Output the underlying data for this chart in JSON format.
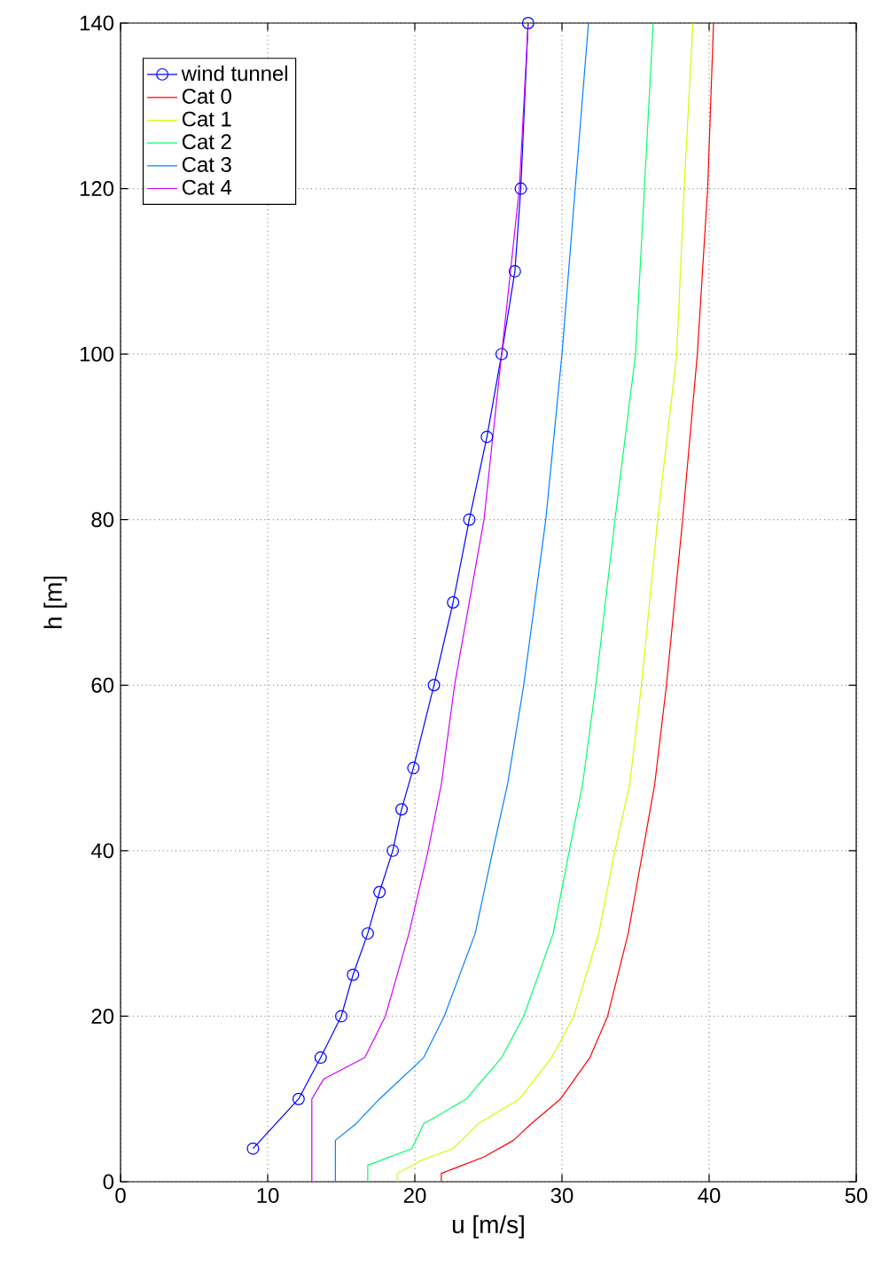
{
  "chart_data": {
    "type": "line",
    "xlabel": "u [m/s]",
    "ylabel": "h [m]",
    "xlim": [
      0,
      50
    ],
    "ylim": [
      0,
      140
    ],
    "xticks": [
      0,
      10,
      20,
      30,
      40,
      50
    ],
    "yticks": [
      0,
      20,
      40,
      60,
      80,
      100,
      120,
      140
    ],
    "grid": true,
    "legend": "top left",
    "line_style": "solid",
    "series": [
      {
        "name": "wind tunnel",
        "color": "#0000ff",
        "marker": "circle",
        "x": [
          9.0,
          12.1,
          13.6,
          15.0,
          15.8,
          16.8,
          17.6,
          18.5,
          19.1,
          19.9,
          21.3,
          22.6,
          23.7,
          24.9,
          25.9,
          26.8,
          27.2,
          27.7
        ],
        "values": [
          4,
          10,
          15,
          20,
          25,
          30,
          35,
          40,
          45,
          50,
          60,
          70,
          80,
          90,
          100,
          110,
          120,
          140
        ]
      },
      {
        "name": "Cat 0",
        "color": "#ff0000",
        "marker": "none",
        "x": [
          21.8,
          21.8,
          24.7,
          26.7,
          27.9,
          29.9,
          31.9,
          33.1,
          34.5,
          35.5,
          36.3,
          37.1,
          38.2,
          39.2,
          39.9,
          40.3
        ],
        "values": [
          0,
          1,
          3,
          5,
          7,
          10,
          15,
          20,
          30,
          40,
          48,
          60,
          80,
          100,
          120,
          140
        ]
      },
      {
        "name": "Cat 1",
        "color": "#ccff00",
        "marker": "none",
        "x": [
          18.8,
          18.8,
          20.6,
          22.6,
          24.3,
          27.1,
          29.3,
          30.8,
          32.5,
          33.6,
          34.6,
          35.4,
          36.5,
          37.8,
          38.3,
          38.9
        ],
        "values": [
          0,
          1,
          2.7,
          4,
          7,
          10,
          15,
          20,
          30,
          40,
          48,
          60,
          80,
          100,
          120,
          140
        ]
      },
      {
        "name": "Cat 2",
        "color": "#00ff66",
        "marker": "none",
        "x": [
          16.8,
          16.8,
          19.8,
          20.6,
          23.5,
          25.9,
          27.4,
          29.4,
          30.5,
          31.4,
          32.3,
          33.6,
          35.0,
          35.6,
          36.2
        ],
        "values": [
          0,
          2,
          4,
          7,
          10,
          15,
          20,
          30,
          40,
          48,
          60,
          80,
          100,
          120,
          140
        ]
      },
      {
        "name": "Cat 3",
        "color": "#0080ff",
        "marker": "none",
        "x": [
          14.6,
          14.6,
          16.0,
          17.6,
          20.6,
          22.0,
          24.1,
          25.3,
          26.3,
          27.4,
          28.9,
          30.0,
          30.9,
          31.8
        ],
        "values": [
          0,
          5,
          7,
          10,
          15,
          20,
          30,
          40,
          48,
          60,
          80,
          100,
          120,
          140
        ]
      },
      {
        "name": "Cat 4",
        "color": "#cc00ff",
        "marker": "none",
        "x": [
          13.0,
          13.0,
          13.8,
          16.6,
          18.0,
          19.6,
          20.9,
          21.8,
          22.7,
          24.7,
          25.9,
          27.1,
          27.7
        ],
        "values": [
          0,
          10,
          12.4,
          15,
          20,
          30,
          40,
          48,
          60,
          80,
          100,
          120,
          140
        ]
      }
    ]
  }
}
